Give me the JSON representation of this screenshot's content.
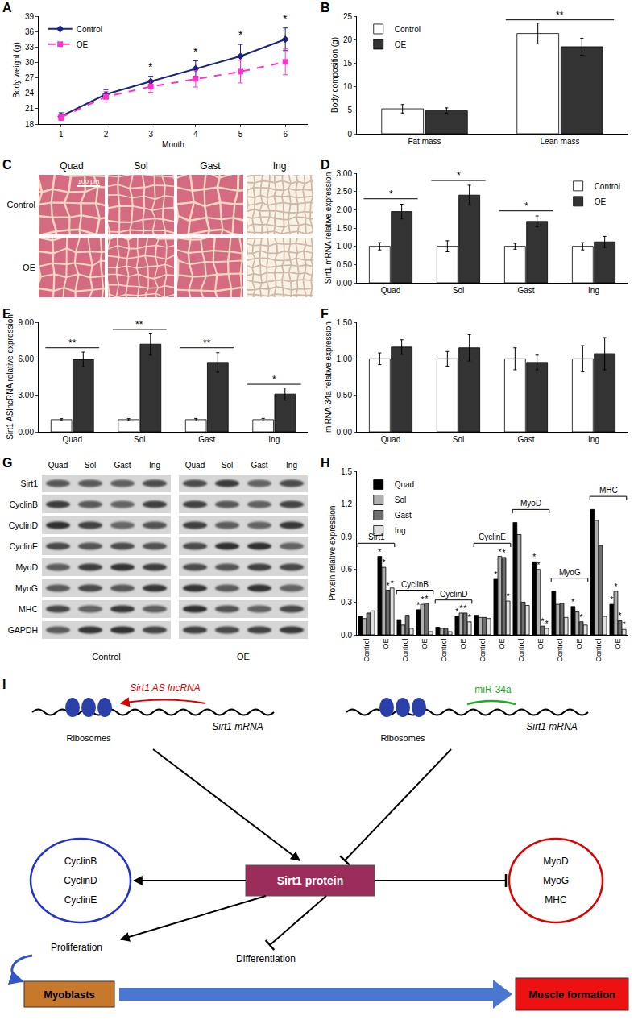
{
  "chart_data": [
    {
      "panel_label": "A",
      "type": "line",
      "x_label": "Month",
      "y_label": "Body weight (g)",
      "x": [
        1,
        2,
        3,
        4,
        5,
        6
      ],
      "xlim": [
        0.5,
        6.5
      ],
      "xticks": [
        1,
        2,
        3,
        4,
        5,
        6
      ],
      "ylim": [
        18,
        39
      ],
      "yticks": [
        18,
        21,
        24,
        27,
        30,
        33,
        36,
        39
      ],
      "legend": "top-left",
      "series": [
        {
          "name": "Control",
          "color": "#1a237e",
          "marker": "diamond",
          "line_style": "solid",
          "values": [
            19.5,
            23.8,
            26.3,
            28.8,
            31.2,
            34.5
          ],
          "errors": [
            0.7,
            0.9,
            1.0,
            1.5,
            2.3,
            2.2
          ]
        },
        {
          "name": "OE",
          "color": "#ff33cc",
          "marker": "square",
          "line_style": "dashed",
          "values": [
            19.3,
            23.3,
            25.3,
            26.8,
            28.2,
            30.1
          ],
          "errors": [
            0.6,
            1.0,
            1.1,
            1.6,
            2.2,
            2.5
          ]
        }
      ],
      "annotations": [
        {
          "x": 3,
          "y": 27.6,
          "text": "*"
        },
        {
          "x": 4,
          "y": 30.6,
          "text": "*"
        },
        {
          "x": 5,
          "y": 33.8,
          "text": "*"
        },
        {
          "x": 6,
          "y": 36.9,
          "text": "*"
        }
      ]
    },
    {
      "panel_label": "B",
      "type": "bar",
      "y_label": "Body composition (g)",
      "categories": [
        "Fat mass",
        "Lean mass"
      ],
      "ylim": [
        0,
        25
      ],
      "yticks": [
        0,
        5,
        10,
        15,
        20,
        25
      ],
      "legend": "top-left",
      "series": [
        {
          "name": "Control",
          "color": "#ffffff",
          "values": [
            5.3,
            21.3
          ],
          "errors": [
            0.9,
            2.2
          ]
        },
        {
          "name": "OE",
          "color": "#333333",
          "values": [
            4.9,
            18.5
          ],
          "errors": [
            0.6,
            1.8
          ]
        }
      ],
      "annotations": [
        {
          "x": 1,
          "y": 24.2,
          "text": "**"
        }
      ]
    },
    {
      "panel_label": "D",
      "type": "bar",
      "y_label": "Sirt1 mRNA relative expression",
      "categories": [
        "Quad",
        "Sol",
        "Gast",
        "Ing"
      ],
      "ylim": [
        0,
        3
      ],
      "yticks": [
        {
          "value": 0,
          "label": "0.00"
        },
        {
          "value": 0.5,
          "label": "0.50"
        },
        {
          "value": 1,
          "label": "1.00"
        },
        {
          "value": 1.5,
          "label": "1.50"
        },
        {
          "value": 2,
          "label": "2.00"
        },
        {
          "value": 2.5,
          "label": "2.50"
        },
        {
          "value": 3,
          "label": "3.00"
        }
      ],
      "legend": "top-right",
      "series": [
        {
          "name": "Control",
          "color": "#ffffff",
          "values": [
            1.0,
            1.0,
            1.0,
            1.0
          ],
          "errors": [
            0.1,
            0.15,
            0.08,
            0.1
          ]
        },
        {
          "name": "OE",
          "color": "#333333",
          "values": [
            1.95,
            2.4,
            1.68,
            1.12
          ],
          "errors": [
            0.2,
            0.27,
            0.15,
            0.15
          ]
        }
      ],
      "annotations": [
        {
          "x": 0,
          "y": 2.3,
          "text": "*"
        },
        {
          "x": 1,
          "y": 2.8,
          "text": "*"
        },
        {
          "x": 2,
          "y": 1.97,
          "text": "*"
        }
      ]
    },
    {
      "panel_label": "E",
      "type": "bar",
      "y_label": "Sirt1 ASlncRNA relative expression",
      "categories": [
        "Quad",
        "Sol",
        "Gast",
        "Ing"
      ],
      "ylim": [
        0,
        9
      ],
      "yticks": [
        {
          "value": 0,
          "label": "0.00"
        },
        {
          "value": 3,
          "label": "3.00"
        },
        {
          "value": 6,
          "label": "6.00"
        },
        {
          "value": 9,
          "label": "9.00"
        }
      ],
      "series": [
        {
          "name": "Control",
          "color": "#ffffff",
          "values": [
            1.0,
            1.0,
            1.0,
            1.0
          ],
          "errors": [
            0.08,
            0.08,
            0.1,
            0.1
          ]
        },
        {
          "name": "OE",
          "color": "#333333",
          "values": [
            5.95,
            7.2,
            5.7,
            3.1
          ],
          "errors": [
            0.6,
            0.9,
            0.8,
            0.5
          ]
        }
      ],
      "annotations": [
        {
          "x": 0,
          "y": 6.9,
          "text": "**"
        },
        {
          "x": 1,
          "y": 8.4,
          "text": "**"
        },
        {
          "x": 2,
          "y": 6.9,
          "text": "**"
        },
        {
          "x": 3,
          "y": 3.9,
          "text": "*"
        }
      ]
    },
    {
      "panel_label": "F",
      "type": "bar",
      "y_label": "miRNA-34a relative expression",
      "categories": [
        "Quad",
        "Sol",
        "Gast",
        "Ing"
      ],
      "ylim": [
        0,
        1.5
      ],
      "yticks": [
        {
          "value": 0,
          "label": "0.00"
        },
        {
          "value": 0.5,
          "label": "0.50"
        },
        {
          "value": 1,
          "label": "1.00"
        },
        {
          "value": 1.5,
          "label": "1.50"
        }
      ],
      "series": [
        {
          "name": "Control",
          "color": "#ffffff",
          "values": [
            1.0,
            1.0,
            1.0,
            1.0
          ],
          "errors": [
            0.08,
            0.1,
            0.15,
            0.18
          ]
        },
        {
          "name": "OE",
          "color": "#333333",
          "values": [
            1.16,
            1.15,
            0.95,
            1.07
          ],
          "errors": [
            0.1,
            0.18,
            0.1,
            0.22
          ]
        }
      ]
    },
    {
      "panel_label": "H",
      "type": "bar",
      "y_label": "Protein relative expression",
      "categories": [
        "Control",
        "OE",
        "Control",
        "OE",
        "Control",
        "OE",
        "Control",
        "OE",
        "Control",
        "OE",
        "Control",
        "OE",
        "Control",
        "OE"
      ],
      "ylim": [
        0,
        1.5
      ],
      "yticks": [
        {
          "value": 0,
          "label": "0.0"
        },
        0.3,
        0.6,
        0.9,
        1.2,
        1.5
      ],
      "legend": "top-left",
      "groups": [
        {
          "label": "Sirt1",
          "from": 0,
          "to": 1
        },
        {
          "label": "CyclinB",
          "from": 2,
          "to": 3
        },
        {
          "label": "CyclinD",
          "from": 4,
          "to": 5
        },
        {
          "label": "CyclinE",
          "from": 6,
          "to": 7
        },
        {
          "label": "MyoD",
          "from": 8,
          "to": 9
        },
        {
          "label": "MyoG",
          "from": 10,
          "to": 11
        },
        {
          "label": "MHC",
          "from": 12,
          "to": 13
        }
      ],
      "series": [
        {
          "name": "Quad",
          "color": "#000000",
          "values": [
            0.17,
            0.72,
            0.14,
            0.23,
            0.07,
            0.17,
            0.18,
            0.51,
            1.03,
            0.67,
            0.4,
            0.26,
            1.15,
            0.28
          ],
          "significance": [
            null,
            "*",
            null,
            "*",
            null,
            "*",
            null,
            "*",
            null,
            "*",
            null,
            "*",
            null,
            "*"
          ]
        },
        {
          "name": "Sol",
          "color": "#b0b0b0",
          "values": [
            0.15,
            0.62,
            0.09,
            0.28,
            0.06,
            0.2,
            0.16,
            0.72,
            0.92,
            0.6,
            0.28,
            0.21,
            1.05,
            0.4
          ],
          "significance": [
            null,
            "*",
            null,
            "*",
            null,
            "*",
            null,
            "*",
            null,
            "*",
            null,
            null,
            null,
            "*"
          ]
        },
        {
          "name": "Gast",
          "color": "#6e6e6e",
          "values": [
            0.2,
            0.41,
            0.18,
            0.29,
            0.06,
            0.2,
            0.16,
            0.71,
            0.3,
            0.08,
            0.29,
            0.12,
            0.82,
            0.13
          ],
          "significance": [
            null,
            "*",
            null,
            "*",
            null,
            "*",
            null,
            "*",
            null,
            "*",
            null,
            "*",
            null,
            "*"
          ]
        },
        {
          "name": "Ing",
          "color": "#e0e0e0",
          "values": [
            0.22,
            0.43,
            0.06,
            0.03,
            0.03,
            0.12,
            0.15,
            0.31,
            0.27,
            0.06,
            0.16,
            0.09,
            0.17,
            0.05
          ],
          "significance": [
            null,
            "*",
            null,
            null,
            null,
            "*",
            null,
            "*",
            null,
            "*",
            null,
            null,
            null,
            "*"
          ]
        }
      ]
    }
  ],
  "histology": {
    "panel_label": "C",
    "columns": [
      "Quad",
      "Sol",
      "Gast",
      "Ing"
    ],
    "rows": [
      "Control",
      "OE"
    ],
    "scale_bar": "100 μm"
  },
  "western_blot": {
    "panel_label": "G",
    "lanes": [
      "Quad",
      "Sol",
      "Gast",
      "Ing"
    ],
    "groups": [
      "Control",
      "OE"
    ],
    "proteins": [
      "Sirt1",
      "CyclinB",
      "CyclinD",
      "CyclinE",
      "MyoD",
      "MyoG",
      "MHC",
      "GAPDH"
    ]
  },
  "model": {
    "panel_label": "I",
    "lncrna": "Sirt1 AS lncRNA",
    "mirna": "miR-34a",
    "mrna": "Sirt1 mRNA",
    "ribosomes": "Ribosomes",
    "protein": "Sirt1 protein",
    "proliferation_genes": [
      "CyclinB",
      "CyclinD",
      "CyclinE"
    ],
    "differentiation_genes": [
      "MyoD",
      "MyoG",
      "MHC"
    ],
    "proliferation": "Proliferation",
    "differentiation": "Differentiation",
    "myoblasts": "Myoblasts",
    "muscle": "Muscle formation"
  }
}
